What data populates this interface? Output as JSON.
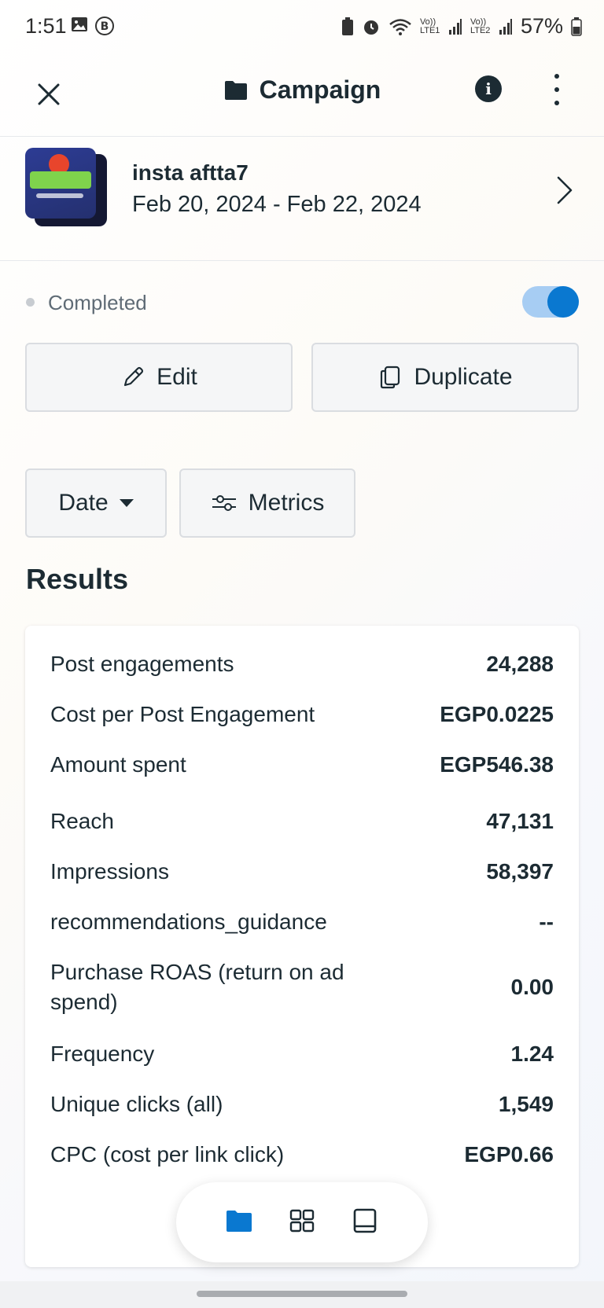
{
  "status_bar": {
    "time": "1:51",
    "battery": "57%",
    "net1": "Vo)) LTE1",
    "net2": "Vo)) LTE2"
  },
  "app_bar": {
    "title": "Campaign",
    "info_glyph": "i"
  },
  "campaign": {
    "name": "insta aftta7",
    "dates": "Feb 20, 2024 - Feb 22, 2024",
    "enabled": true
  },
  "status": {
    "label": "Completed"
  },
  "actions": {
    "edit_label": "Edit",
    "duplicate_label": "Duplicate"
  },
  "filters": {
    "date_label": "Date",
    "metrics_label": "Metrics"
  },
  "results": {
    "title": "Results",
    "rows": [
      {
        "label": "Post engagements",
        "value": "24,288"
      },
      {
        "label": "Cost per Post Engagement",
        "value": "EGP0.0225"
      },
      {
        "label": "Amount spent",
        "value": "EGP546.38"
      },
      {
        "label": "Reach",
        "value": "47,131"
      },
      {
        "label": "Impressions",
        "value": "58,397"
      },
      {
        "label": "recommendations_guidance",
        "value": "--"
      },
      {
        "label": "Purchase ROAS (return on ad spend)",
        "value": "0.00"
      },
      {
        "label": "Frequency",
        "value": "1.24"
      },
      {
        "label": "Unique clicks (all)",
        "value": "1,549"
      },
      {
        "label": "CPC (cost per link click)",
        "value": "EGP0.66"
      }
    ]
  },
  "bottom_nav": {
    "items": [
      "folder-icon",
      "grid-icon",
      "tablet-icon"
    ],
    "active_color": "#0a78d0"
  }
}
